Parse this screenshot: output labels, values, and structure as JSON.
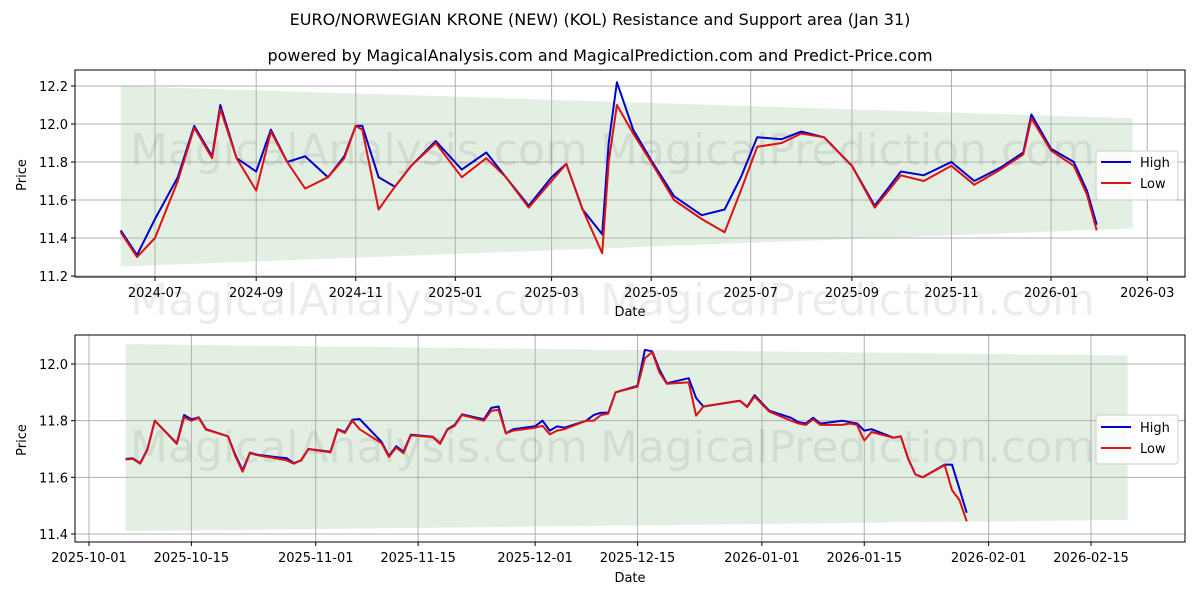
{
  "title": "EURO/NORWEGIAN KRONE (NEW) (KOL) Resistance and Support area (Jan 31)",
  "subtitle": "powered by MagicalAnalysis.com and MagicalPrediction.com and Predict-Price.com",
  "watermarks": [
    "MagicalAnalysis.com",
    "MagicalPrediction.com"
  ],
  "colors": {
    "high": "#0000cc",
    "low": "#dd1111",
    "band": "#e3efe3",
    "grid": "#b0b0b0"
  },
  "chart_data": [
    {
      "type": "line",
      "title": "EURO/NORWEGIAN KRONE (NEW) (KOL) Resistance and Support area (Jan 31)",
      "xlabel": "Date",
      "ylabel": "Price",
      "ylim": [
        11.18,
        12.28
      ],
      "yticks": [
        "11.2",
        "11.4",
        "11.6",
        "11.8",
        "12.0",
        "12.2"
      ],
      "xticks": [
        "2024-07",
        "2024-09",
        "2024-11",
        "2025-01",
        "2025-03",
        "2025-05",
        "2025-07",
        "2025-09",
        "2025-11",
        "2026-01",
        "2026-03"
      ],
      "grid": true,
      "legend": {
        "position": "center right",
        "entries": [
          "High",
          "Low"
        ]
      },
      "band": {
        "label": "Resistance and Support area",
        "start": "2024-06-10",
        "end": "2026-02-20",
        "upper": [
          12.2,
          12.03
        ],
        "lower": [
          11.25,
          11.45
        ]
      },
      "x": [
        "2024-06-10",
        "2024-06-20",
        "2024-07-01",
        "2024-07-15",
        "2024-07-25",
        "2024-08-05",
        "2024-08-10",
        "2024-08-20",
        "2024-09-01",
        "2024-09-10",
        "2024-09-20",
        "2024-10-01",
        "2024-10-15",
        "2024-10-25",
        "2024-11-01",
        "2024-11-05",
        "2024-11-15",
        "2024-11-25",
        "2024-12-05",
        "2024-12-20",
        "2025-01-05",
        "2025-01-20",
        "2025-02-01",
        "2025-02-15",
        "2025-03-01",
        "2025-03-10",
        "2025-03-20",
        "2025-04-01",
        "2025-04-05",
        "2025-04-10",
        "2025-04-20",
        "2025-05-01",
        "2025-05-15",
        "2025-06-01",
        "2025-06-15",
        "2025-06-25",
        "2025-07-05",
        "2025-07-20",
        "2025-08-01",
        "2025-08-15",
        "2025-09-01",
        "2025-09-15",
        "2025-10-01",
        "2025-10-15",
        "2025-11-01",
        "2025-11-15",
        "2025-12-01",
        "2025-12-15",
        "2025-12-20",
        "2026-01-01",
        "2026-01-15",
        "2026-01-23",
        "2026-01-29"
      ],
      "series": [
        {
          "name": "High",
          "color": "#0000cc",
          "values": [
            11.44,
            11.31,
            11.5,
            11.72,
            11.99,
            11.83,
            12.1,
            11.82,
            11.75,
            11.97,
            11.8,
            11.83,
            11.72,
            11.83,
            11.99,
            11.99,
            11.72,
            11.67,
            11.78,
            11.91,
            11.76,
            11.85,
            11.72,
            11.57,
            11.72,
            11.79,
            11.55,
            11.42,
            11.9,
            12.22,
            11.97,
            11.81,
            11.62,
            11.52,
            11.55,
            11.72,
            11.93,
            11.92,
            11.96,
            11.93,
            11.78,
            11.57,
            11.75,
            11.73,
            11.8,
            11.7,
            11.77,
            11.85,
            12.05,
            11.87,
            11.8,
            11.65,
            11.47
          ]
        },
        {
          "name": "Low",
          "color": "#dd1111",
          "values": [
            11.43,
            11.3,
            11.4,
            11.7,
            11.98,
            11.82,
            12.08,
            11.82,
            11.65,
            11.96,
            11.8,
            11.66,
            11.72,
            11.82,
            11.99,
            11.97,
            11.55,
            11.67,
            11.78,
            11.9,
            11.72,
            11.82,
            11.72,
            11.56,
            11.7,
            11.79,
            11.55,
            11.32,
            11.8,
            12.1,
            11.95,
            11.8,
            11.6,
            11.5,
            11.43,
            11.65,
            11.88,
            11.9,
            11.95,
            11.93,
            11.78,
            11.56,
            11.73,
            11.7,
            11.78,
            11.68,
            11.76,
            11.84,
            12.03,
            11.86,
            11.78,
            11.63,
            11.44
          ]
        }
      ]
    },
    {
      "type": "line",
      "xlabel": "Date",
      "ylabel": "Price",
      "ylim": [
        11.37,
        12.1
      ],
      "yticks": [
        "11.4",
        "11.6",
        "11.8",
        "12.0"
      ],
      "xticks": [
        "2025-10-01",
        "2025-10-15",
        "2025-11-01",
        "2025-11-15",
        "2025-12-01",
        "2025-12-15",
        "2026-01-01",
        "2026-01-15",
        "2026-02-01",
        "2026-02-15"
      ],
      "grid": true,
      "legend": {
        "position": "center right",
        "entries": [
          "High",
          "Low"
        ]
      },
      "band": {
        "start": "2025-10-06",
        "end": "2026-02-20",
        "upper": [
          12.07,
          12.03
        ],
        "lower": [
          11.41,
          11.45
        ]
      },
      "x": [
        "2025-10-06",
        "2025-10-07",
        "2025-10-08",
        "2025-10-09",
        "2025-10-10",
        "2025-10-13",
        "2025-10-14",
        "2025-10-15",
        "2025-10-16",
        "2025-10-17",
        "2025-10-20",
        "2025-10-21",
        "2025-10-22",
        "2025-10-23",
        "2025-10-24",
        "2025-10-27",
        "2025-10-28",
        "2025-10-29",
        "2025-10-30",
        "2025-10-31",
        "2025-11-03",
        "2025-11-04",
        "2025-11-05",
        "2025-11-06",
        "2025-11-07",
        "2025-11-10",
        "2025-11-11",
        "2025-11-12",
        "2025-11-13",
        "2025-11-14",
        "2025-11-17",
        "2025-11-18",
        "2025-11-19",
        "2025-11-20",
        "2025-11-21",
        "2025-11-24",
        "2025-11-25",
        "2025-11-26",
        "2025-11-27",
        "2025-11-28",
        "2025-12-01",
        "2025-12-02",
        "2025-12-03",
        "2025-12-04",
        "2025-12-05",
        "2025-12-08",
        "2025-12-09",
        "2025-12-10",
        "2025-12-11",
        "2025-12-12",
        "2025-12-15",
        "2025-12-16",
        "2025-12-17",
        "2025-12-18",
        "2025-12-19",
        "2025-12-22",
        "2025-12-23",
        "2025-12-24",
        "2025-12-29",
        "2025-12-30",
        "2025-12-31",
        "2026-01-02",
        "2026-01-05",
        "2026-01-06",
        "2026-01-07",
        "2026-01-08",
        "2026-01-09",
        "2026-01-12",
        "2026-01-13",
        "2026-01-14",
        "2026-01-15",
        "2026-01-16",
        "2026-01-19",
        "2026-01-20",
        "2026-01-21",
        "2026-01-22",
        "2026-01-23",
        "2026-01-26",
        "2026-01-27",
        "2026-01-28",
        "2026-01-29"
      ],
      "series": [
        {
          "name": "High",
          "color": "#0000cc",
          "values": [
            11.665,
            11.667,
            11.65,
            11.7,
            11.8,
            11.72,
            11.82,
            11.805,
            11.812,
            11.77,
            11.745,
            11.68,
            11.625,
            11.687,
            11.68,
            11.67,
            11.668,
            11.65,
            11.66,
            11.7,
            11.69,
            11.77,
            11.76,
            11.803,
            11.806,
            11.725,
            11.675,
            11.71,
            11.69,
            11.75,
            11.743,
            11.72,
            11.77,
            11.785,
            11.822,
            11.805,
            11.845,
            11.85,
            11.755,
            11.77,
            11.78,
            11.8,
            11.765,
            11.78,
            11.775,
            11.8,
            11.82,
            11.828,
            11.828,
            11.9,
            11.923,
            12.05,
            12.045,
            11.98,
            11.932,
            11.95,
            11.88,
            11.85,
            11.87,
            11.85,
            11.89,
            11.835,
            11.81,
            11.795,
            11.79,
            11.81,
            11.79,
            11.8,
            11.795,
            11.79,
            11.765,
            11.77,
            11.74,
            11.745,
            11.665,
            11.61,
            11.6,
            11.645,
            11.645,
            11.56,
            11.475
          ]
        },
        {
          "name": "Low",
          "color": "#dd1111",
          "values": [
            11.663,
            11.665,
            11.648,
            11.698,
            11.8,
            11.718,
            11.812,
            11.8,
            11.81,
            11.768,
            11.745,
            11.675,
            11.62,
            11.685,
            11.678,
            11.665,
            11.66,
            11.648,
            11.66,
            11.7,
            11.688,
            11.768,
            11.757,
            11.8,
            11.77,
            11.72,
            11.672,
            11.705,
            11.685,
            11.748,
            11.742,
            11.718,
            11.768,
            11.782,
            11.82,
            11.8,
            11.835,
            11.838,
            11.755,
            11.765,
            11.775,
            11.782,
            11.752,
            11.765,
            11.77,
            11.8,
            11.8,
            11.82,
            11.825,
            11.9,
            11.92,
            12.02,
            12.042,
            11.97,
            11.93,
            11.935,
            11.818,
            11.85,
            11.87,
            11.848,
            11.885,
            11.832,
            11.8,
            11.79,
            11.785,
            11.805,
            11.785,
            11.785,
            11.79,
            11.785,
            11.73,
            11.76,
            11.74,
            11.745,
            11.665,
            11.61,
            11.6,
            11.643,
            11.555,
            11.52,
            11.445
          ]
        }
      ]
    }
  ]
}
